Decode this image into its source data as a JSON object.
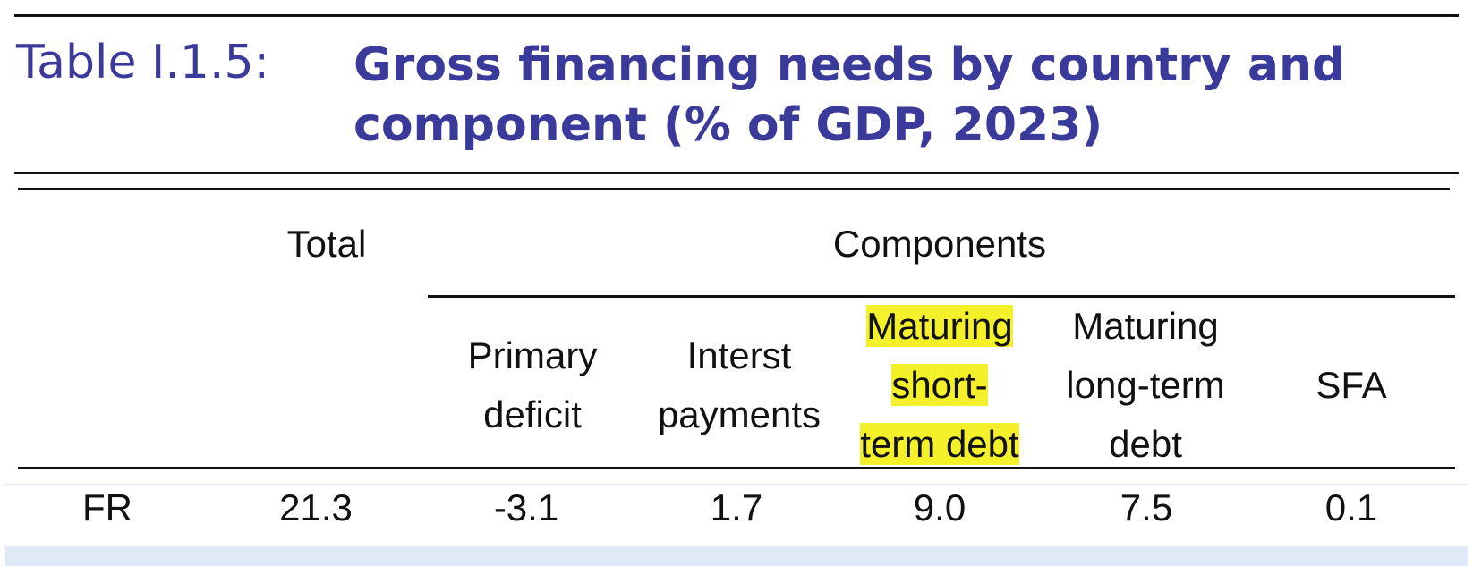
{
  "title": {
    "label": "Table I.1.5:",
    "text": "Gross financing needs by country and component (% of GDP, 2023)"
  },
  "header": {
    "total": "Total",
    "components": "Components",
    "columns": [
      {
        "line1": "Primary",
        "line2": "deficit"
      },
      {
        "line1": "Interst",
        "line2": "payments"
      },
      {
        "line1": "Maturing",
        "line2": "short-",
        "line3": "term debt",
        "highlighted": true
      },
      {
        "line1": "Maturing",
        "line2": "long-term",
        "line3": "debt"
      },
      {
        "line1": "SFA"
      }
    ]
  },
  "rows": [
    {
      "country": "FR",
      "total": "21.3",
      "primary_deficit": "-3.1",
      "interest_payments": "1.7",
      "maturing_short_term": "9.0",
      "maturing_long_term": "7.5",
      "sfa": "0.1"
    }
  ],
  "colors": {
    "title": "#3a3a9a",
    "highlight": "#f4f02a",
    "band": "#dfe9f7"
  }
}
